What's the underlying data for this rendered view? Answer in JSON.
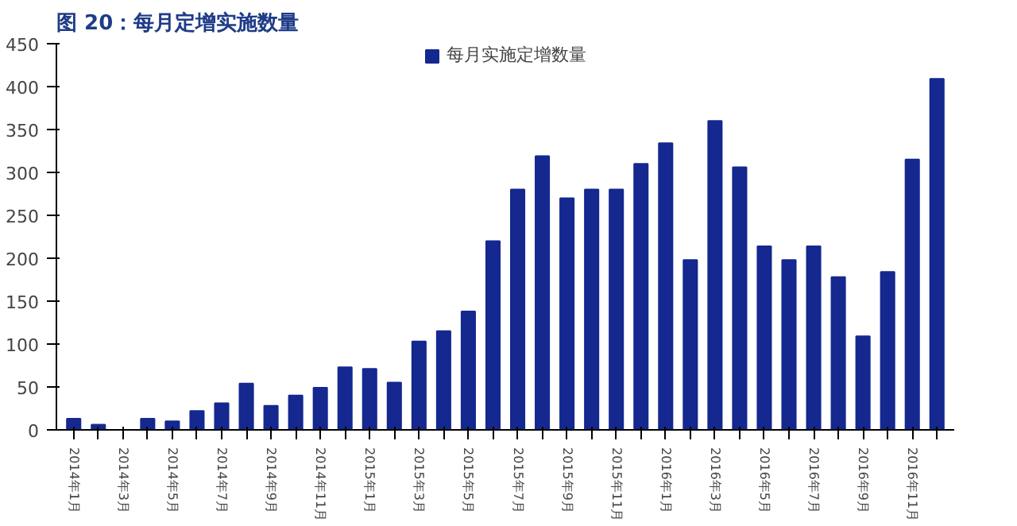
{
  "chart_data": {
    "type": "bar",
    "title": "图 20：每月定增实施数量",
    "categories": [
      "2014年1月",
      null,
      "2014年3月",
      null,
      "2014年5月",
      null,
      "2014年7月",
      null,
      "2014年9月",
      null,
      "2014年11月",
      null,
      "2015年1月",
      null,
      "2015年3月",
      null,
      "2015年5月",
      null,
      "2015年7月",
      null,
      "2015年9月",
      null,
      "2015年11月",
      null,
      "2016年1月",
      null,
      "2016年3月",
      null,
      "2016年5月",
      null,
      "2016年7月",
      null,
      "2016年9月",
      null,
      "2016年11月",
      null
    ],
    "series": [
      {
        "name": "每月实施定增数量",
        "color": "#14288f",
        "values": [
          13,
          6,
          0,
          13,
          10,
          22,
          31,
          54,
          28,
          40,
          49,
          73,
          71,
          55,
          103,
          115,
          138,
          220,
          280,
          319,
          270,
          280,
          280,
          310,
          334,
          198,
          360,
          306,
          214,
          198,
          214,
          178,
          109,
          184,
          315,
          409
        ]
      }
    ],
    "ylim": [
      0,
      450
    ],
    "yticks": [
      0,
      50,
      100,
      150,
      200,
      250,
      300,
      350,
      400,
      450
    ],
    "grid": false,
    "legend": "top"
  }
}
